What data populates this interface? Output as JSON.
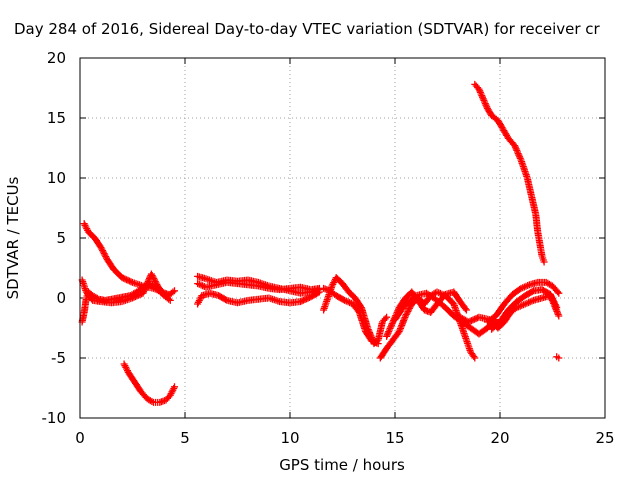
{
  "chart_data": {
    "type": "scatter",
    "title": "Day 284 of 2016, Sidereal Day-to-day VTEC variation (SDTVAR) for receiver cr",
    "xlabel": "GPS time / hours",
    "ylabel": "SDTVAR / TECUs",
    "xlim": [
      0,
      25
    ],
    "ylim": [
      -10,
      20
    ],
    "xticks": [
      0,
      5,
      10,
      15,
      20,
      25
    ],
    "yticks": [
      -10,
      -5,
      0,
      5,
      10,
      15,
      20
    ],
    "xtick_labels": [
      "0",
      "5",
      "10",
      "15",
      "20",
      "25"
    ],
    "ytick_labels": [
      "-10",
      "-5",
      "0",
      "5",
      "10",
      "15",
      "20"
    ],
    "grid": true,
    "marker": "+",
    "color": "#ff0000",
    "tracks": [
      {
        "name": "trace-1",
        "points": [
          [
            0.2,
            6.2
          ],
          [
            0.4,
            5.5
          ],
          [
            0.7,
            5.0
          ],
          [
            1.0,
            4.2
          ],
          [
            1.3,
            3.2
          ],
          [
            1.6,
            2.4
          ],
          [
            2.0,
            1.7
          ],
          [
            2.5,
            1.3
          ],
          [
            3.0,
            1.0
          ],
          [
            3.5,
            0.8
          ],
          [
            3.9,
            0.5
          ],
          [
            4.2,
            0.3
          ]
        ]
      },
      {
        "name": "trace-2",
        "points": [
          [
            0.1,
            -2.0
          ],
          [
            0.2,
            -1.2
          ],
          [
            0.3,
            0.0
          ],
          [
            0.4,
            0.5
          ],
          [
            0.6,
            0.2
          ],
          [
            0.9,
            -0.1
          ],
          [
            1.2,
            -0.2
          ],
          [
            1.5,
            -0.1
          ],
          [
            1.8,
            0.0
          ],
          [
            2.1,
            0.1
          ],
          [
            2.4,
            0.2
          ],
          [
            2.7,
            0.5
          ],
          [
            3.0,
            0.9
          ],
          [
            3.3,
            1.2
          ],
          [
            3.6,
            0.9
          ],
          [
            3.9,
            0.4
          ],
          [
            4.2,
            0.2
          ],
          [
            4.5,
            0.6
          ]
        ]
      },
      {
        "name": "trace-3",
        "points": [
          [
            0.1,
            1.5
          ],
          [
            0.3,
            0.5
          ],
          [
            0.6,
            -0.2
          ],
          [
            1.0,
            -0.3
          ],
          [
            1.5,
            -0.4
          ],
          [
            2.0,
            -0.3
          ],
          [
            2.5,
            0.0
          ],
          [
            3.0,
            0.4
          ],
          [
            3.4,
            2.0
          ],
          [
            3.7,
            1.0
          ],
          [
            4.0,
            0.2
          ],
          [
            4.3,
            -0.2
          ]
        ]
      },
      {
        "name": "trace-4",
        "points": [
          [
            2.1,
            -5.5
          ],
          [
            2.3,
            -6.2
          ],
          [
            2.6,
            -7.0
          ],
          [
            2.9,
            -7.8
          ],
          [
            3.2,
            -8.4
          ],
          [
            3.5,
            -8.7
          ],
          [
            3.8,
            -8.7
          ],
          [
            4.1,
            -8.5
          ],
          [
            4.3,
            -8.1
          ],
          [
            4.5,
            -7.4
          ]
        ]
      },
      {
        "name": "trace-5",
        "points": [
          [
            5.6,
            1.8
          ],
          [
            6.0,
            1.6
          ],
          [
            6.5,
            1.3
          ],
          [
            7.0,
            1.5
          ],
          [
            7.5,
            1.4
          ],
          [
            8.0,
            1.5
          ],
          [
            8.5,
            1.3
          ],
          [
            9.0,
            1.0
          ],
          [
            9.5,
            0.8
          ],
          [
            10.0,
            0.6
          ],
          [
            10.5,
            0.4
          ],
          [
            11.0,
            0.5
          ],
          [
            11.4,
            0.7
          ]
        ]
      },
      {
        "name": "trace-6",
        "points": [
          [
            5.6,
            1.2
          ],
          [
            6.0,
            0.9
          ],
          [
            6.5,
            1.1
          ],
          [
            7.0,
            1.3
          ],
          [
            7.5,
            1.2
          ],
          [
            8.0,
            1.1
          ],
          [
            8.5,
            1.0
          ],
          [
            9.0,
            0.8
          ],
          [
            9.5,
            0.7
          ],
          [
            10.0,
            0.8
          ],
          [
            10.5,
            0.9
          ],
          [
            11.0,
            0.7
          ],
          [
            11.4,
            0.8
          ]
        ]
      },
      {
        "name": "trace-7",
        "points": [
          [
            5.6,
            -0.5
          ],
          [
            5.8,
            0.2
          ],
          [
            6.2,
            0.4
          ],
          [
            6.6,
            0.2
          ],
          [
            7.0,
            -0.2
          ],
          [
            7.5,
            -0.4
          ],
          [
            8.0,
            -0.2
          ],
          [
            8.5,
            -0.1
          ],
          [
            9.0,
            0.0
          ],
          [
            9.5,
            -0.3
          ],
          [
            10.0,
            -0.4
          ],
          [
            10.5,
            -0.3
          ],
          [
            11.0,
            0.1
          ],
          [
            11.4,
            0.5
          ]
        ]
      },
      {
        "name": "trace-8",
        "points": [
          [
            11.6,
            -1.0
          ],
          [
            11.8,
            0.0
          ],
          [
            12.0,
            1.0
          ],
          [
            12.2,
            1.7
          ],
          [
            12.5,
            1.2
          ],
          [
            12.8,
            0.5
          ],
          [
            13.1,
            0.0
          ],
          [
            13.4,
            -0.8
          ],
          [
            13.7,
            -2.5
          ],
          [
            14.0,
            -3.8
          ],
          [
            14.2,
            -3.5
          ],
          [
            14.4,
            -2.0
          ],
          [
            14.6,
            -1.6
          ]
        ]
      },
      {
        "name": "trace-9",
        "points": [
          [
            11.6,
            0.8
          ],
          [
            11.9,
            0.6
          ],
          [
            12.2,
            0.2
          ],
          [
            12.6,
            -0.2
          ],
          [
            13.0,
            -0.5
          ],
          [
            13.3,
            -1.2
          ],
          [
            13.6,
            -2.8
          ],
          [
            13.9,
            -3.6
          ],
          [
            14.2,
            -3.8
          ]
        ]
      },
      {
        "name": "trace-10",
        "points": [
          [
            14.3,
            -5.0
          ],
          [
            14.6,
            -4.2
          ],
          [
            14.9,
            -3.5
          ],
          [
            15.2,
            -2.8
          ],
          [
            15.5,
            -1.5
          ],
          [
            15.8,
            -0.5
          ],
          [
            16.1,
            0.0
          ],
          [
            16.4,
            -0.5
          ],
          [
            16.7,
            0.2
          ],
          [
            17.0,
            0.5
          ],
          [
            17.4,
            0.2
          ],
          [
            17.8,
            -0.5
          ],
          [
            18.1,
            -2.0
          ],
          [
            18.4,
            -3.5
          ],
          [
            18.6,
            -4.5
          ],
          [
            18.8,
            -5.0
          ]
        ]
      },
      {
        "name": "trace-11",
        "points": [
          [
            14.6,
            -3.2
          ],
          [
            14.9,
            -2.0
          ],
          [
            15.2,
            -0.8
          ],
          [
            15.5,
            0.0
          ],
          [
            15.8,
            0.5
          ],
          [
            16.1,
            -0.2
          ],
          [
            16.4,
            -1.0
          ],
          [
            16.7,
            -1.2
          ],
          [
            17.0,
            -0.5
          ],
          [
            17.4,
            0.3
          ],
          [
            17.8,
            0.5
          ],
          [
            18.1,
            -0.3
          ],
          [
            18.4,
            -1.0
          ]
        ]
      },
      {
        "name": "trace-12",
        "points": [
          [
            15.0,
            -1.8
          ],
          [
            15.3,
            -1.0
          ],
          [
            15.6,
            -0.4
          ],
          [
            16.0,
            0.2
          ],
          [
            16.5,
            0.4
          ],
          [
            17.0,
            -0.2
          ],
          [
            17.4,
            -0.8
          ],
          [
            17.8,
            -1.5
          ],
          [
            18.2,
            -2.0
          ],
          [
            18.6,
            -2.5
          ],
          [
            19.0,
            -3.0
          ],
          [
            19.4,
            -2.5
          ],
          [
            19.8,
            -1.8
          ]
        ]
      },
      {
        "name": "trace-13",
        "points": [
          [
            18.0,
            -1.5
          ],
          [
            18.5,
            -2.0
          ],
          [
            19.0,
            -1.6
          ],
          [
            19.5,
            -1.8
          ],
          [
            19.9,
            -2.5
          ],
          [
            20.2,
            -2.0
          ],
          [
            20.5,
            -1.2
          ],
          [
            20.8,
            -0.8
          ],
          [
            21.2,
            -0.5
          ],
          [
            21.6,
            -0.2
          ],
          [
            22.0,
            0.0
          ],
          [
            22.4,
            0.2
          ],
          [
            22.8,
            -1.5
          ]
        ]
      },
      {
        "name": "trace-14",
        "points": [
          [
            19.4,
            -2.0
          ],
          [
            19.8,
            -1.5
          ],
          [
            20.2,
            -0.5
          ],
          [
            20.6,
            0.3
          ],
          [
            21.0,
            0.8
          ],
          [
            21.4,
            1.1
          ],
          [
            21.8,
            1.3
          ],
          [
            22.2,
            1.3
          ],
          [
            22.5,
            1.0
          ],
          [
            22.8,
            0.4
          ]
        ]
      },
      {
        "name": "trace-15",
        "points": [
          [
            19.6,
            -2.6
          ],
          [
            20.0,
            -2.0
          ],
          [
            20.4,
            -1.0
          ],
          [
            20.8,
            -0.3
          ],
          [
            21.2,
            0.2
          ],
          [
            21.6,
            0.6
          ],
          [
            22.0,
            0.7
          ],
          [
            22.4,
            0.3
          ],
          [
            22.7,
            -0.8
          ]
        ]
      },
      {
        "name": "trace-16",
        "points": [
          [
            18.8,
            17.8
          ],
          [
            19.0,
            17.4
          ],
          [
            19.2,
            16.6
          ],
          [
            19.4,
            15.8
          ],
          [
            19.6,
            15.2
          ],
          [
            19.9,
            14.8
          ],
          [
            20.1,
            14.2
          ],
          [
            20.4,
            13.3
          ],
          [
            20.7,
            12.7
          ],
          [
            21.0,
            11.5
          ],
          [
            21.3,
            10.0
          ],
          [
            21.5,
            8.5
          ],
          [
            21.7,
            7.0
          ],
          [
            21.8,
            5.5
          ],
          [
            21.9,
            4.5
          ],
          [
            22.0,
            3.5
          ],
          [
            22.1,
            3.0
          ]
        ]
      },
      {
        "name": "trace-17",
        "points": [
          [
            22.7,
            -4.9
          ],
          [
            22.8,
            -5.0
          ]
        ]
      }
    ]
  }
}
